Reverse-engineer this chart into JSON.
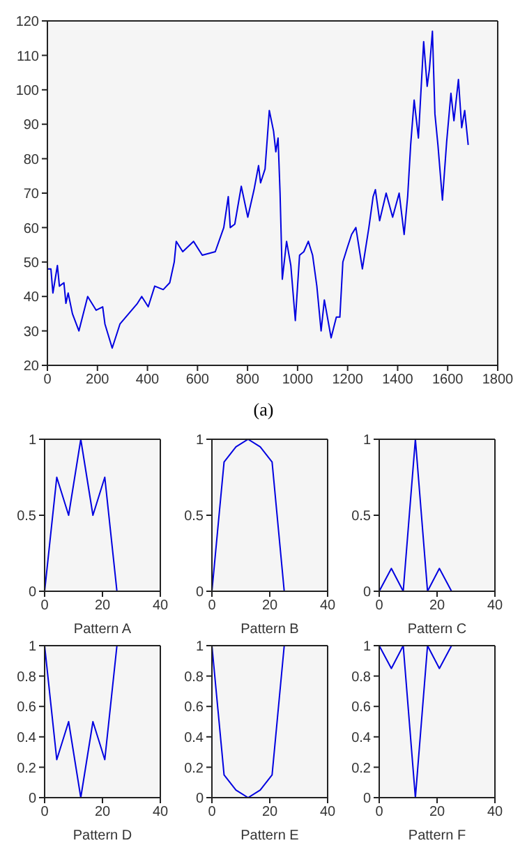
{
  "chart_data": [
    {
      "type": "line",
      "annotations": [
        "(a)"
      ],
      "xlim": [
        0,
        1800
      ],
      "xticks": [
        0,
        200,
        400,
        600,
        800,
        1000,
        1200,
        1400,
        1600,
        1800
      ],
      "ylim": [
        20,
        120
      ],
      "yticks": [
        20,
        30,
        40,
        50,
        60,
        70,
        80,
        90,
        100,
        110,
        120
      ],
      "grid": false,
      "series": [
        {
          "color": "#0000e0",
          "x": [
            0,
            14,
            22,
            40,
            48,
            66,
            74,
            83,
            100,
            126,
            161,
            195,
            221,
            230,
            259,
            290,
            360,
            377,
            403,
            429,
            463,
            489,
            507,
            515,
            541,
            584,
            619,
            671,
            705,
            723,
            731,
            749,
            775,
            801,
            826,
            844,
            852,
            870,
            887,
            904,
            913,
            922,
            930,
            939,
            956,
            973,
            991,
            1008,
            1025,
            1043,
            1060,
            1077,
            1094,
            1107,
            1134,
            1155,
            1169,
            1181,
            1198,
            1216,
            1233,
            1259,
            1285,
            1302,
            1311,
            1328,
            1354,
            1380,
            1406,
            1426,
            1440,
            1452,
            1466,
            1483,
            1504,
            1518,
            1527,
            1539,
            1549,
            1561,
            1579,
            1596,
            1613,
            1625,
            1643,
            1656,
            1668,
            1682
          ],
          "values": [
            48,
            48,
            41,
            49,
            43,
            44,
            38,
            41,
            35,
            30,
            40,
            36,
            37,
            32,
            25,
            32,
            38,
            40,
            37,
            43,
            42,
            44,
            50,
            56,
            53,
            56,
            52,
            53,
            60,
            69,
            60,
            61,
            72,
            63,
            71,
            78,
            73,
            77,
            94,
            88,
            82,
            86,
            70,
            45,
            56,
            49,
            33,
            52,
            53,
            56,
            52,
            43,
            30,
            39,
            28,
            34,
            34,
            50,
            54,
            58,
            60,
            48,
            60,
            69,
            71,
            62,
            70,
            63,
            70,
            58,
            69,
            84,
            97,
            86,
            114,
            101,
            106,
            117,
            93,
            84,
            68,
            85,
            99,
            91,
            103,
            89,
            94,
            84
          ]
        }
      ]
    },
    {
      "type": "line",
      "xlabel": "Pattern A",
      "xlim": [
        0,
        40
      ],
      "xticks": [
        0,
        20,
        40
      ],
      "ylim": [
        0,
        1
      ],
      "yticks": [
        0,
        0.5,
        1
      ],
      "series": [
        {
          "color": "#0000e0",
          "x": [
            0,
            4.2,
            8.3,
            12.5,
            16.7,
            20.8,
            25
          ],
          "values": [
            0,
            0.75,
            0.5,
            1,
            0.5,
            0.75,
            0
          ]
        }
      ]
    },
    {
      "type": "line",
      "xlabel": "Pattern B",
      "xlim": [
        0,
        40
      ],
      "xticks": [
        0,
        20,
        40
      ],
      "ylim": [
        0,
        1
      ],
      "yticks": [
        0,
        0.5,
        1
      ],
      "series": [
        {
          "color": "#0000e0",
          "x": [
            0,
            4.2,
            8.3,
            12.5,
            16.7,
            20.8,
            25
          ],
          "values": [
            0,
            0.85,
            0.95,
            1,
            0.95,
            0.85,
            0
          ]
        }
      ]
    },
    {
      "type": "line",
      "xlabel": "Pattern C",
      "xlim": [
        0,
        40
      ],
      "xticks": [
        0,
        20,
        40
      ],
      "ylim": [
        0,
        1
      ],
      "yticks": [
        0,
        0.5,
        1
      ],
      "series": [
        {
          "color": "#0000e0",
          "x": [
            0,
            4.2,
            8.3,
            12.5,
            16.7,
            20.8,
            25
          ],
          "values": [
            0,
            0.15,
            0,
            1,
            0,
            0.15,
            0
          ]
        }
      ]
    },
    {
      "type": "line",
      "xlabel": "Pattern D",
      "xlim": [
        0,
        40
      ],
      "xticks": [
        0,
        20,
        40
      ],
      "ylim": [
        0,
        1
      ],
      "yticks": [
        0,
        0.2,
        0.4,
        0.6,
        0.8,
        1
      ],
      "series": [
        {
          "color": "#0000e0",
          "x": [
            0,
            4.2,
            8.3,
            12.5,
            16.7,
            20.8,
            25
          ],
          "values": [
            1,
            0.25,
            0.5,
            0,
            0.5,
            0.25,
            1
          ]
        }
      ]
    },
    {
      "type": "line",
      "xlabel": "Pattern E",
      "xlim": [
        0,
        40
      ],
      "xticks": [
        0,
        20,
        40
      ],
      "ylim": [
        0,
        1
      ],
      "yticks": [
        0,
        0.2,
        0.4,
        0.6,
        0.8,
        1
      ],
      "series": [
        {
          "color": "#0000e0",
          "x": [
            0,
            4.2,
            8.3,
            12.5,
            16.7,
            20.8,
            25
          ],
          "values": [
            1,
            0.15,
            0.05,
            0,
            0.05,
            0.15,
            1
          ]
        }
      ]
    },
    {
      "type": "line",
      "xlabel": "Pattern F",
      "xlim": [
        0,
        40
      ],
      "xticks": [
        0,
        20,
        40
      ],
      "ylim": [
        0,
        1
      ],
      "yticks": [
        0,
        0.2,
        0.4,
        0.6,
        0.8,
        1
      ],
      "series": [
        {
          "color": "#0000e0",
          "x": [
            0,
            4.2,
            8.3,
            12.5,
            16.7,
            20.8,
            25
          ],
          "values": [
            1,
            0.85,
            1,
            0,
            1,
            0.85,
            1
          ]
        }
      ]
    }
  ]
}
